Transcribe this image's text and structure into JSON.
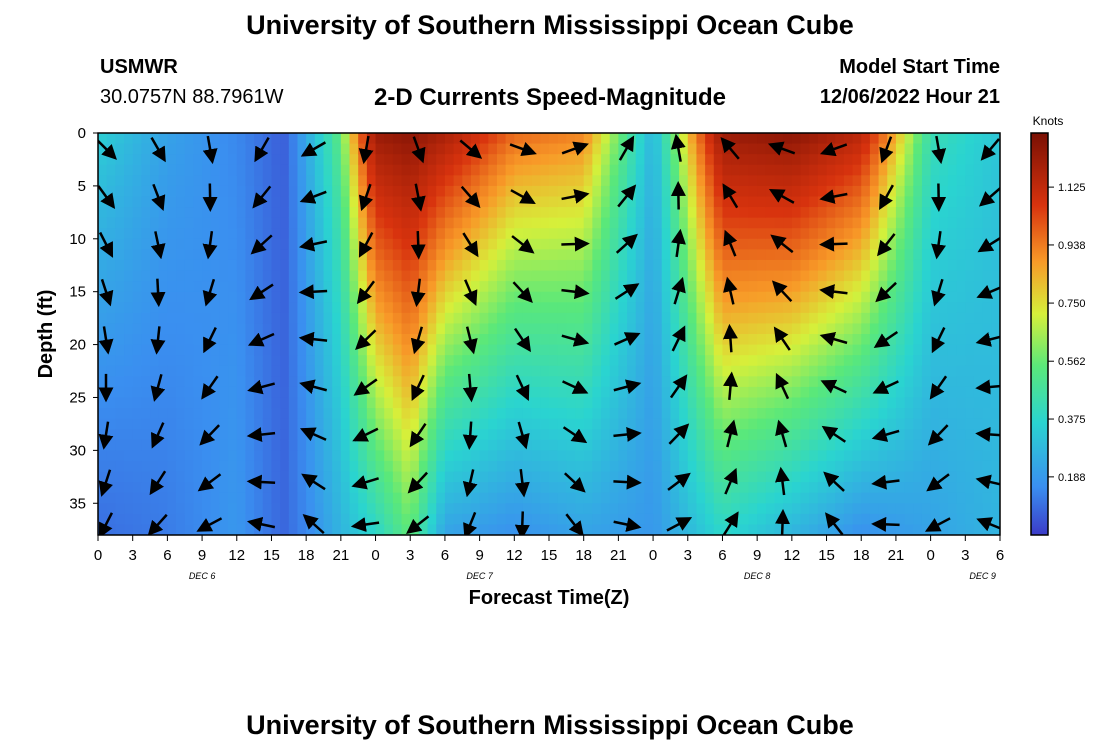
{
  "header": {
    "title_top": "University of Southern Mississippi Ocean Cube",
    "station": "USMWR",
    "coords": "30.0757N  88.7961W",
    "plot_title": "2-D Currents Speed-Magnitude",
    "model_start_label": "Model Start Time",
    "model_start_value": "12/06/2022 Hour 21",
    "title_bottom": "University of Southern Mississippi Ocean Cube"
  },
  "chart_data": {
    "type": "heatmap",
    "title": "2-D Currents Speed-Magnitude",
    "xlabel": "Forecast Time(Z)",
    "ylabel": "Depth (ft)",
    "x_tick_labels": [
      "0",
      "3",
      "6",
      "9",
      "12",
      "15",
      "18",
      "21",
      "0",
      "3",
      "6",
      "9",
      "12",
      "15",
      "18",
      "21",
      "0",
      "3",
      "6",
      "9",
      "12",
      "15",
      "18",
      "21",
      "0",
      "3",
      "6"
    ],
    "day_labels": [
      "DEC 6",
      "DEC 7",
      "DEC 8",
      "DEC 9"
    ],
    "y_ticks": [
      0,
      5,
      10,
      15,
      20,
      25,
      30,
      35
    ],
    "ylim": [
      0,
      38
    ],
    "xlim_hours": [
      0,
      78
    ],
    "colorbar": {
      "label": "Knots",
      "ticks": [
        "1.125",
        "0.938",
        "0.750",
        "0.562",
        "0.375",
        "0.188"
      ],
      "tick_values": [
        1.125,
        0.938,
        0.75,
        0.562,
        0.375,
        0.188
      ],
      "range": [
        0,
        1.3
      ]
    },
    "colors": {
      "low": "#3b4fd8",
      "blue": "#3a8ff0",
      "cyan": "#2ad4d0",
      "green": "#5ae87a",
      "yellow": "#d6f03a",
      "orange": "#f89a28",
      "red": "#d8330e",
      "dark_red": "#a01a06"
    },
    "speed_profiles": [
      {
        "hour": 0,
        "surface": 0.38,
        "bottom": 0.12
      },
      {
        "hour": 6,
        "surface": 0.25,
        "bottom": 0.15
      },
      {
        "hour": 12,
        "surface": 0.18,
        "bottom": 0.22
      },
      {
        "hour": 16,
        "surface": 0.08,
        "bottom": 0.1
      },
      {
        "hour": 21,
        "surface": 0.55,
        "bottom": 0.3
      },
      {
        "hour": 24,
        "surface": 1.2,
        "bottom": 0.4
      },
      {
        "hour": 27,
        "surface": 1.25,
        "bottom": 0.55
      },
      {
        "hour": 30,
        "surface": 1.15,
        "bottom": 0.25
      },
      {
        "hour": 36,
        "surface": 0.9,
        "bottom": 0.2
      },
      {
        "hour": 42,
        "surface": 0.85,
        "bottom": 0.25
      },
      {
        "hour": 48,
        "surface": 0.3,
        "bottom": 0.22
      },
      {
        "hour": 54,
        "surface": 1.2,
        "bottom": 0.4
      },
      {
        "hour": 60,
        "surface": 1.25,
        "bottom": 0.3
      },
      {
        "hour": 66,
        "surface": 1.1,
        "bottom": 0.2
      },
      {
        "hour": 72,
        "surface": 0.45,
        "bottom": 0.25
      },
      {
        "hour": 78,
        "surface": 0.35,
        "bottom": 0.3
      }
    ],
    "vectors": {
      "hours": [
        0,
        4.5,
        9,
        13.5,
        18,
        22.5,
        27,
        31.5,
        36,
        40.5,
        45,
        49.5,
        54,
        58.5,
        63,
        67.5,
        72,
        76.5
      ],
      "depths": [
        1.5,
        6,
        10.5,
        15,
        19.5,
        24,
        28.5,
        33,
        37
      ],
      "angles_deg": [
        45,
        60,
        80,
        120,
        150,
        100,
        70,
        40,
        20,
        340,
        300,
        260,
        230,
        200,
        160,
        110,
        80,
        130
      ]
    }
  }
}
